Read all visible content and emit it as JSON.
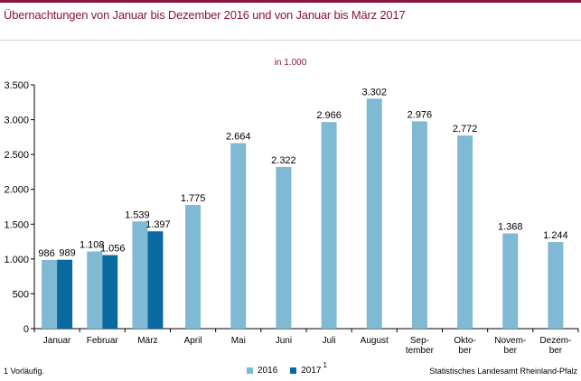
{
  "title": "Übernachtungen von Januar bis Dezember 2016 und von Januar bis März 2017",
  "unit_label": "in 1.000",
  "footnote": "1 Vorläufig.",
  "source": "Statistisches Landesamt Rheinland-Pfalz",
  "legend": [
    {
      "label": "2016",
      "color": "#7fb9d4",
      "sup": ""
    },
    {
      "label": "2017",
      "color": "#0a6aa0",
      "sup": "1"
    }
  ],
  "colors": {
    "accent": "#8a1538",
    "series_2016": "#7fb9d4",
    "series_2017": "#0a6aa0"
  },
  "chart_data": {
    "type": "bar",
    "title": "Übernachtungen von Januar bis Dezember 2016 und von Januar bis März 2017",
    "subtitle": "in 1.000",
    "categories": [
      [
        "Januar"
      ],
      [
        "Februar"
      ],
      [
        "März"
      ],
      [
        "April"
      ],
      [
        "Mai"
      ],
      [
        "Juni"
      ],
      [
        "Juli"
      ],
      [
        "August"
      ],
      [
        "Sep-",
        "tember"
      ],
      [
        "Okto-",
        "ber"
      ],
      [
        "Novem-",
        "ber"
      ],
      [
        "Dezem-",
        "ber"
      ]
    ],
    "series": [
      {
        "name": "2016",
        "values": [
          986,
          1108,
          1539,
          1775,
          2664,
          2322,
          2966,
          3302,
          2976,
          2772,
          1368,
          1244
        ],
        "labels": [
          "986",
          "1.108",
          "1.539",
          "1.775",
          "2.664",
          "2.322",
          "2.966",
          "3.302",
          "2.976",
          "2.772",
          "1.368",
          "1.244"
        ]
      },
      {
        "name": "2017",
        "values": [
          989,
          1056,
          1397,
          null,
          null,
          null,
          null,
          null,
          null,
          null,
          null,
          null
        ],
        "labels": [
          "989",
          "1.056",
          "1.397",
          "",
          "",
          "",
          "",
          "",
          "",
          "",
          "",
          ""
        ]
      }
    ],
    "ylim": [
      0,
      3500
    ],
    "yticks": [
      0,
      500,
      1000,
      1500,
      2000,
      2500,
      3000,
      3500
    ],
    "ytick_labels": [
      "0",
      "500",
      "1.000",
      "1.500",
      "2.000",
      "2.500",
      "3.000",
      "3.500"
    ],
    "grid": false,
    "legend_position": "bottom"
  }
}
